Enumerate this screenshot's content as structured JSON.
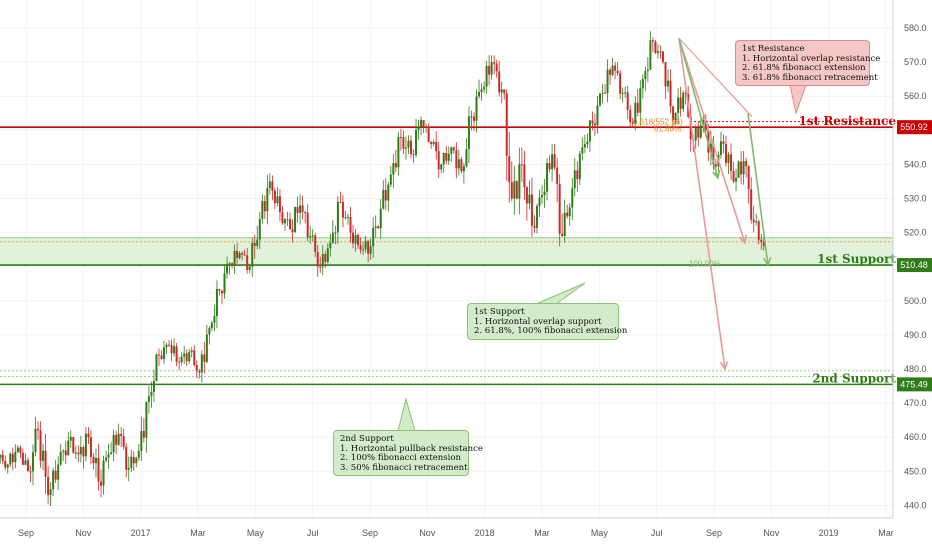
{
  "chart_data": {
    "type": "candlestick",
    "title": "",
    "ylim": [
      435,
      585
    ],
    "y_ticks": [
      440,
      450,
      460,
      470,
      480,
      490,
      500,
      510,
      520,
      530,
      540,
      550,
      560,
      570,
      580
    ],
    "x_ticks": [
      "Sep",
      "Nov",
      "2017",
      "Mar",
      "May",
      "Jul",
      "Sep",
      "Nov",
      "2018",
      "Mar",
      "May",
      "Jul",
      "Sep",
      "Nov",
      "2019",
      "Mar"
    ],
    "series": [
      {
        "values": [
          [
            454,
            458,
            449,
            452
          ],
          [
            452,
            460,
            448,
            457
          ],
          [
            457,
            462,
            452,
            450
          ],
          [
            450,
            466,
            445,
            462
          ],
          [
            462,
            465,
            440,
            443
          ],
          [
            443,
            455,
            439,
            452
          ],
          [
            452,
            462,
            447,
            459
          ],
          [
            459,
            464,
            452,
            455
          ],
          [
            455,
            463,
            445,
            460
          ],
          [
            460,
            462,
            441,
            447
          ],
          [
            447,
            458,
            440,
            455
          ],
          [
            455,
            465,
            450,
            461
          ],
          [
            461,
            463,
            446,
            451
          ],
          [
            451,
            460,
            449,
            456
          ],
          [
            456,
            475,
            452,
            472
          ],
          [
            472,
            486,
            468,
            484
          ],
          [
            484,
            490,
            480,
            487
          ],
          [
            487,
            490,
            478,
            482
          ],
          [
            482,
            487,
            476,
            485
          ],
          [
            485,
            487,
            476,
            479
          ],
          [
            479,
            495,
            476,
            492
          ],
          [
            492,
            506,
            488,
            503
          ],
          [
            503,
            513,
            497,
            511
          ],
          [
            511,
            517,
            505,
            514
          ],
          [
            514,
            519,
            508,
            510
          ],
          [
            510,
            527,
            507,
            524
          ],
          [
            524,
            538,
            519,
            535
          ],
          [
            535,
            537,
            523,
            526
          ],
          [
            526,
            530,
            518,
            521
          ],
          [
            521,
            532,
            514,
            528
          ],
          [
            528,
            532,
            516,
            519
          ],
          [
            519,
            521,
            506,
            510
          ],
          [
            510,
            520,
            507,
            517
          ],
          [
            517,
            532,
            513,
            529
          ],
          [
            529,
            531,
            516,
            520
          ],
          [
            520,
            524,
            512,
            515
          ],
          [
            515,
            519,
            506,
            516
          ],
          [
            516,
            530,
            512,
            527
          ],
          [
            527,
            540,
            522,
            537
          ],
          [
            537,
            552,
            532,
            548
          ],
          [
            548,
            554,
            538,
            543
          ],
          [
            543,
            556,
            540,
            553
          ],
          [
            553,
            552,
            543,
            546
          ],
          [
            546,
            553,
            536,
            540
          ],
          [
            540,
            548,
            536,
            545
          ],
          [
            545,
            550,
            535,
            538
          ],
          [
            538,
            557,
            534,
            554
          ],
          [
            554,
            566,
            548,
            562
          ],
          [
            562,
            573,
            557,
            570
          ],
          [
            570,
            572,
            556,
            562
          ],
          [
            562,
            562,
            524,
            530
          ],
          [
            530,
            546,
            518,
            540
          ],
          [
            540,
            544,
            518,
            522
          ],
          [
            522,
            534,
            518,
            531
          ],
          [
            531,
            546,
            527,
            543
          ],
          [
            543,
            546,
            516,
            519
          ],
          [
            519,
            536,
            517,
            533
          ],
          [
            533,
            548,
            529,
            545
          ],
          [
            545,
            556,
            541,
            552
          ],
          [
            552,
            564,
            548,
            561
          ],
          [
            561,
            573,
            557,
            569
          ],
          [
            569,
            570,
            557,
            561
          ],
          [
            561,
            563,
            549,
            552
          ],
          [
            552,
            570,
            550,
            565
          ],
          [
            565,
            580,
            561,
            576
          ],
          [
            576,
            577,
            566,
            570
          ],
          [
            570,
            569,
            550,
            553
          ],
          [
            553,
            565,
            548,
            561
          ],
          [
            561,
            563,
            543,
            547
          ],
          [
            547,
            557,
            543,
            553
          ],
          [
            553,
            556,
            537,
            540
          ],
          [
            540,
            550,
            536,
            546
          ],
          [
            546,
            549,
            532,
            535
          ],
          [
            535,
            545,
            528,
            541
          ],
          [
            541,
            542,
            520,
            523
          ],
          [
            523,
            526,
            514,
            516
          ]
        ],
        "value_format": "open, high, low, close"
      }
    ],
    "levels": [
      {
        "label": "1st Resistance",
        "price": 550.92,
        "tag": "550.92",
        "color": "#cc0000"
      },
      {
        "label": "1st Support",
        "price": 510.48,
        "tag": "510.48",
        "color": "#2e7d18"
      },
      {
        "label": "2nd Support",
        "price": 475.49,
        "tag": "475.49",
        "color": "#2e7d18"
      }
    ],
    "fib_labels": [
      {
        "text": "0.618(552.56)",
        "price": 552.56
      },
      {
        "text": "61.80%",
        "price": 550.5
      },
      {
        "text": "100.00%",
        "price": 511.0
      }
    ],
    "callouts": {
      "resistance": {
        "lines": [
          "1st Resistance",
          "1. Horizontal overlap resistance",
          "2. 61.8% fibonacci extension",
          "3. 61.8% fibonacci retracement"
        ]
      },
      "support1": {
        "lines": [
          "1st Support",
          "1. Horizontal overlap support",
          "2. 61.8%, 100% fibonacci extension"
        ]
      },
      "support2": {
        "lines": [
          "2nd Support",
          "1. Horizontal pullback resistance",
          "2. 100% fibonacci extension",
          "3. 50% fibonacci retracement"
        ]
      }
    },
    "colors": {
      "up": "#2e7d18",
      "down": "#cc2a2a",
      "resistance": "#cc0000",
      "support": "#2e7d18",
      "support_zone": "#d8ecd0",
      "arrow_red": "#e89a9a",
      "arrow_green": "#7dbb6a",
      "fib": "#e0812a"
    }
  }
}
